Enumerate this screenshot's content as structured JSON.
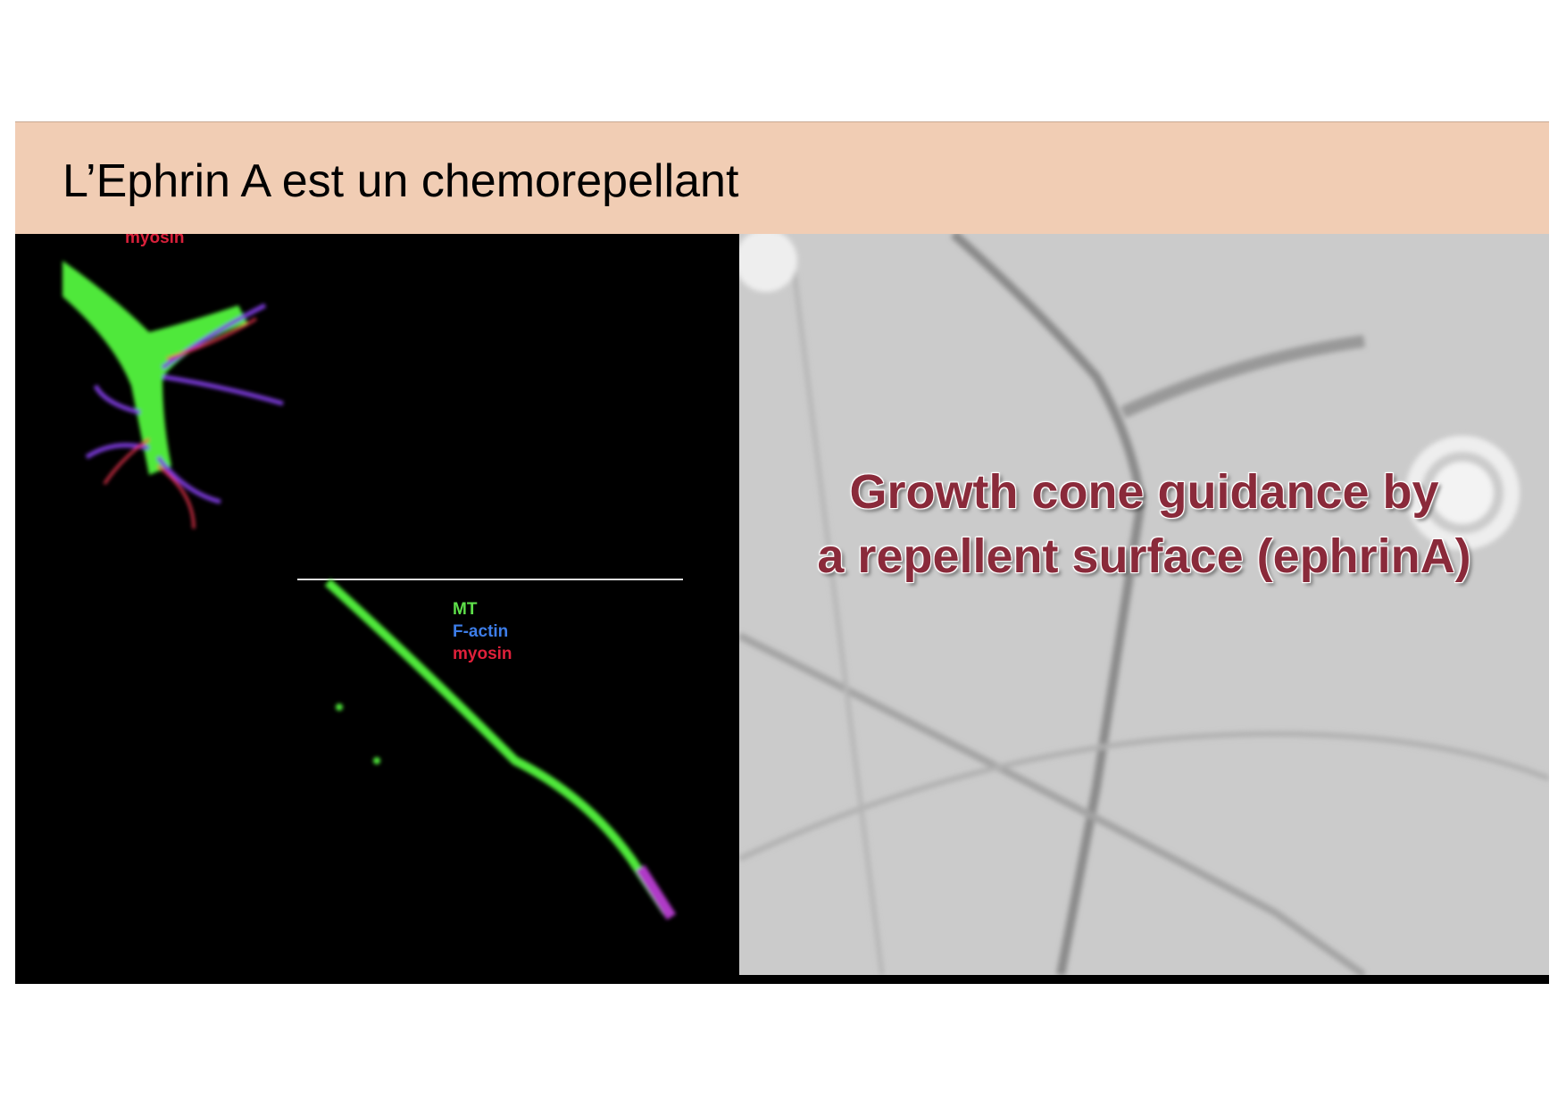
{
  "slide": {
    "title": "L’Ephrin A est un chemorepellant",
    "header_color": "#f1cdb4",
    "left_panel": {
      "top_image_label": "myosin",
      "bottom_image_labels": [
        {
          "text": "MT",
          "color": "#5ee04a"
        },
        {
          "text": "F-actin",
          "color": "#3d7de8"
        },
        {
          "text": "myosin",
          "color": "#e0203a"
        }
      ]
    },
    "right_panel": {
      "overlay_lines": [
        "Growth cone guidance by",
        "a repellent surface (ephrinA)"
      ],
      "overlay_color": "#8a2a3a"
    }
  }
}
